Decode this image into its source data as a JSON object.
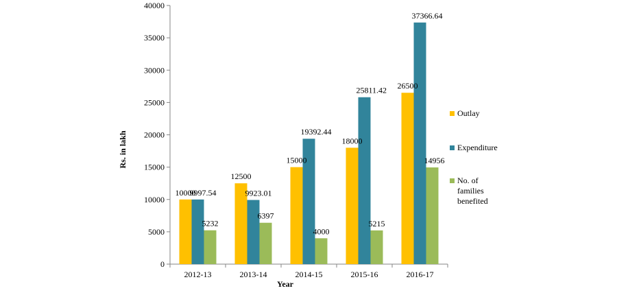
{
  "chart_data": {
    "type": "bar",
    "title": "",
    "xlabel": "Year",
    "ylabel": "Rs. in lakh",
    "ylim": [
      0,
      40000
    ],
    "yticks": [
      0,
      5000,
      10000,
      15000,
      20000,
      25000,
      30000,
      35000,
      40000
    ],
    "categories": [
      "2012-13",
      "2013-14",
      "2014-15",
      "2015-16",
      "2016-17"
    ],
    "series": [
      {
        "name": "Outlay",
        "color": "#FFC000",
        "values": [
          10000,
          12500,
          15000,
          18000,
          26500
        ],
        "labels": [
          "10000",
          "12500",
          "15000",
          "18000",
          "26500"
        ]
      },
      {
        "name": "Expenditure",
        "color": "#31849B",
        "values": [
          9997.54,
          9923.01,
          19392.44,
          25811.42,
          37366.64
        ],
        "labels": [
          "9997.54",
          "9923.01",
          "19392.44",
          "25811.42",
          "37366.64"
        ]
      },
      {
        "name": "No. of families benefited",
        "color": "#9BBB59",
        "legend_lines": [
          "No. of",
          "families",
          "benefited"
        ],
        "values": [
          5232,
          6397,
          4000,
          5215,
          14956
        ],
        "labels": [
          "5232",
          "6397",
          "4000",
          "5215",
          "14956"
        ]
      }
    ],
    "grid": false,
    "legend_position": "right"
  }
}
